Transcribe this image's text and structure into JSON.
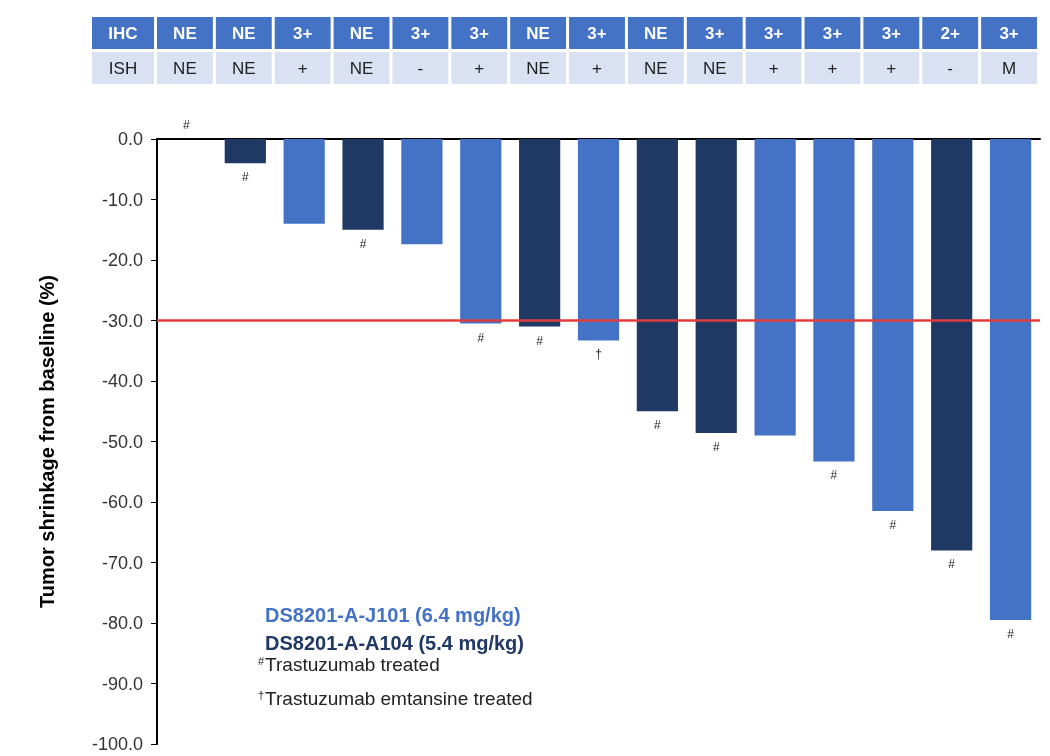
{
  "chart_data": {
    "type": "bar",
    "stacked": true,
    "xlabel": "IHC",
    "ylabel": "Tumor shrinkage from baseline (%)",
    "categories": [
      "NE",
      "NE",
      "3+",
      "NE",
      "3+",
      "3+",
      "NE",
      "3+",
      "NE",
      "3+",
      "3+",
      "3+",
      "3+",
      "2+",
      "3+"
    ],
    "series": [
      {
        "name": "DS8201-A-J101 (6.4 mg/kg)",
        "color": "#4472c4",
        "values": [
          0,
          null,
          -14,
          null,
          -17.4,
          -30.5,
          null,
          -33.3,
          null,
          null,
          -49,
          -53.3,
          -61.5,
          null,
          -79.5
        ],
        "value_labels": [
          "#",
          null,
          null,
          null,
          null,
          "#",
          null,
          "†",
          null,
          null,
          null,
          "#",
          "#",
          null,
          "#"
        ]
      },
      {
        "name": "DS8201-A-A104 (5.4 mg/kg)",
        "color": "#1f3864",
        "values": [
          null,
          -4,
          null,
          -15,
          null,
          null,
          -31,
          null,
          -45,
          -48.6,
          null,
          null,
          null,
          -68,
          null
        ],
        "value_labels": [
          null,
          "#",
          null,
          "#",
          null,
          null,
          "#",
          null,
          "#",
          "#",
          null,
          null,
          null,
          "#",
          null
        ]
      }
    ],
    "ylim": [
      -100,
      0
    ],
    "yticks": [
      {
        "value": 0,
        "label": "0.0"
      },
      {
        "value": -10,
        "label": "-10.0"
      },
      {
        "value": -20,
        "label": "-20.0"
      },
      {
        "value": -30,
        "label": "-30.0"
      },
      {
        "value": -40,
        "label": "-40.0"
      },
      {
        "value": -50,
        "label": "-50.0"
      },
      {
        "value": -60,
        "label": "-60.0"
      },
      {
        "value": -70,
        "label": "-70.0"
      },
      {
        "value": -80,
        "label": "-80.0"
      },
      {
        "value": -90,
        "label": "-90.0"
      },
      {
        "value": -100,
        "label": "-100.0"
      }
    ],
    "ref_lines": [
      {
        "axis": "y",
        "value": -30,
        "color": "#e03c3c",
        "line_style": "solid"
      }
    ],
    "legend": "bottom left",
    "grid": false,
    "annotations": [
      "ISH",
      "NE",
      "NE",
      "+",
      "NE",
      "-",
      "+",
      "NE",
      "+",
      "NE",
      "NE",
      "+",
      "+",
      "+",
      "-",
      "M",
      "$^{#}$Trastuzumab treated",
      "$^{†}$Trastuzumab emtansine treated"
    ]
  }
}
